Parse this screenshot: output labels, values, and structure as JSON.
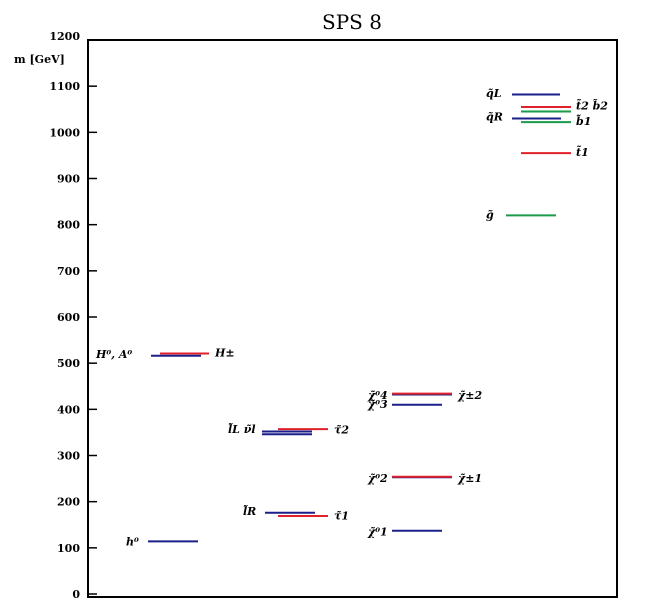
{
  "chart_data": {
    "type": "spectrum",
    "title": "SPS 8",
    "ylabel": "m [GeV]",
    "ylim": [
      0,
      1200
    ],
    "yticks": [
      "0",
      "100",
      "200",
      "300",
      "400",
      "500",
      "600",
      "700",
      "800",
      "900",
      "1000",
      "1100",
      "1200"
    ],
    "colors": {
      "blue": "#1b1f8a",
      "red": "#e0202a",
      "green": "#1a9a4a"
    },
    "columns": [
      {
        "name": "higgs",
        "levels": [
          {
            "mass": 114,
            "color": "blue"
          },
          {
            "mass": 516,
            "color": "blue"
          },
          {
            "mass": 521,
            "color": "red"
          }
        ],
        "labels": [
          {
            "text": "h⁰",
            "mass": 114,
            "side": "left"
          },
          {
            "text": "H⁰, A⁰",
            "mass": 520,
            "side": "left"
          },
          {
            "text": "H±",
            "mass": 523,
            "side": "right"
          }
        ]
      },
      {
        "name": "sleptons",
        "levels": [
          {
            "mass": 176,
            "color": "blue"
          },
          {
            "mass": 169,
            "color": "red"
          },
          {
            "mass": 352,
            "color": "blue"
          },
          {
            "mass": 346,
            "color": "blue"
          },
          {
            "mass": 357,
            "color": "red"
          }
        ],
        "labels": [
          {
            "text": "l̃R",
            "mass": 180,
            "side": "left"
          },
          {
            "text": "τ̃1",
            "mass": 170,
            "side": "right"
          },
          {
            "text": "l̃L ν̃l",
            "mass": 357,
            "side": "left"
          },
          {
            "text": "τ̃2",
            "mass": 356,
            "side": "right"
          }
        ]
      },
      {
        "name": "gauginos",
        "levels": [
          {
            "mass": 137,
            "color": "blue"
          },
          {
            "mass": 253,
            "color": "blue"
          },
          {
            "mass": 254,
            "color": "red"
          },
          {
            "mass": 410,
            "color": "blue"
          },
          {
            "mass": 432,
            "color": "blue"
          },
          {
            "mass": 434,
            "color": "red"
          }
        ],
        "labels": [
          {
            "text": "χ̃⁰1",
            "mass": 135,
            "side": "left"
          },
          {
            "text": "χ̃⁰2",
            "mass": 251,
            "side": "left"
          },
          {
            "text": "χ̃±1",
            "mass": 251,
            "side": "right"
          },
          {
            "text": "χ̃⁰3",
            "mass": 412,
            "side": "left"
          },
          {
            "text": "χ̃⁰4",
            "mass": 431,
            "side": "left"
          },
          {
            "text": "χ̃±2",
            "mass": 431,
            "side": "right"
          }
        ]
      },
      {
        "name": "squarks",
        "levels": [
          {
            "mass": 820,
            "color": "green"
          },
          {
            "mass": 955,
            "color": "red"
          },
          {
            "mass": 1022,
            "color": "green"
          },
          {
            "mass": 1030,
            "color": "blue"
          },
          {
            "mass": 1045,
            "color": "green"
          },
          {
            "mass": 1055,
            "color": "red"
          },
          {
            "mass": 1082,
            "color": "blue"
          }
        ],
        "labels": [
          {
            "text": "g̃",
            "mass": 822,
            "side": "left"
          },
          {
            "text": "t̃1",
            "mass": 957,
            "side": "right"
          },
          {
            "text": "q̃R",
            "mass": 1034,
            "side": "left"
          },
          {
            "text": "b̃1",
            "mass": 1025,
            "side": "right"
          },
          {
            "text": "q̃L",
            "mass": 1085,
            "side": "left"
          },
          {
            "text": "t̃2 b̃2",
            "mass": 1058,
            "side": "right"
          }
        ]
      }
    ]
  }
}
